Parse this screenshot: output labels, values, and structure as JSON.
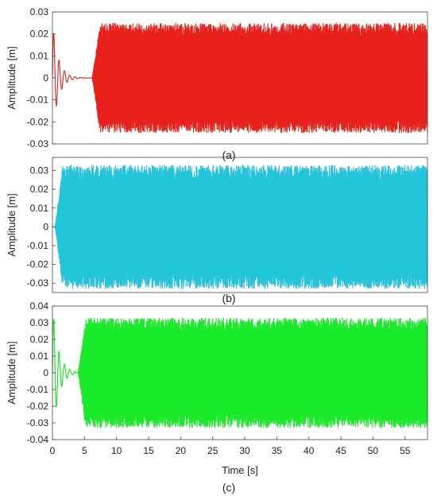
{
  "chart_data": [
    {
      "type": "line",
      "panel_label": "(a)",
      "ylabel": "Amplitude [m]",
      "ylim": [
        -0.03,
        0.03
      ],
      "yticks": [
        0.03,
        0.02,
        0.01,
        0,
        -0.01,
        -0.02,
        -0.03
      ],
      "xlim": [
        0,
        58.5
      ],
      "color": "#e8201c",
      "envelope": "#9a5a40",
      "series": [
        {
          "transient_peak": 0.025,
          "transient_end": 4.8,
          "onset": 6.2,
          "steady_amplitude": 0.025
        }
      ]
    },
    {
      "type": "line",
      "panel_label": "(b)",
      "ylabel": "Amplitude [m]",
      "ylim": [
        -0.035,
        0.037
      ],
      "yticks": [
        0.03,
        0.02,
        0.01,
        0,
        -0.01,
        -0.02,
        -0.03
      ],
      "xlim": [
        0,
        58.5
      ],
      "color": "#21c6d8",
      "envelope": "#3a7fd0",
      "series": [
        {
          "onset": 0.4,
          "steady_amplitude": 0.033
        }
      ]
    },
    {
      "type": "line",
      "panel_label": "(c)",
      "ylabel": "Amplitude [m]",
      "xlabel": "Time [s]",
      "ylim": [
        -0.04,
        0.04
      ],
      "yticks": [
        0.04,
        0.03,
        0.02,
        0.01,
        0,
        -0.01,
        -0.02,
        -0.03,
        -0.04
      ],
      "xlim": [
        0,
        58.5
      ],
      "xticks": [
        0,
        5,
        10,
        15,
        20,
        25,
        30,
        35,
        40,
        45,
        50,
        55
      ],
      "color": "#19ea2a",
      "envelope": "#3fa83f",
      "series": [
        {
          "transient_peak": 0.04,
          "transient_end": 3.6,
          "onset": 4.0,
          "steady_amplitude": 0.033
        }
      ]
    }
  ]
}
